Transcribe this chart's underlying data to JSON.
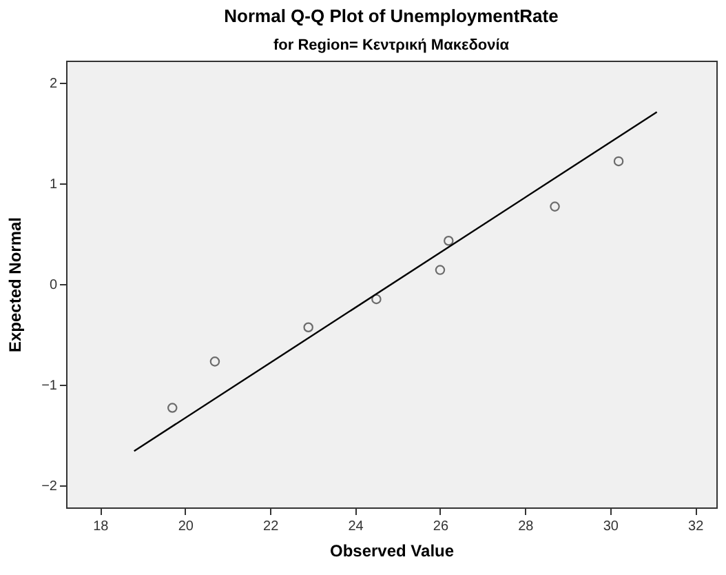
{
  "chart_data": {
    "type": "scatter",
    "title": "Normal Q-Q Plot of UnemploymentRate",
    "subtitle": "for Region= Κεντρική Μακεδονία",
    "xlabel": "Observed Value",
    "ylabel": "Expected Normal",
    "xlim": [
      17.2,
      32.5
    ],
    "xticks": [
      18,
      20,
      22,
      24,
      26,
      28,
      30,
      32
    ],
    "ylim": [
      -2.22,
      2.22
    ],
    "yticks": [
      -2,
      -1,
      0,
      1,
      2
    ],
    "grid": false,
    "series": [
      {
        "marker": "circle",
        "color": "#333333",
        "x": [
          19.7,
          20.7,
          22.9,
          24.5,
          26.0,
          26.2,
          28.7,
          30.2
        ],
        "values": [
          -1.23,
          -0.77,
          -0.43,
          -0.15,
          0.14,
          0.43,
          0.77,
          1.22
        ]
      },
      {
        "type": "line",
        "marker": "none",
        "color": "#000000",
        "x": [
          18.8,
          31.1
        ],
        "values": [
          -1.66,
          1.71
        ]
      }
    ]
  }
}
